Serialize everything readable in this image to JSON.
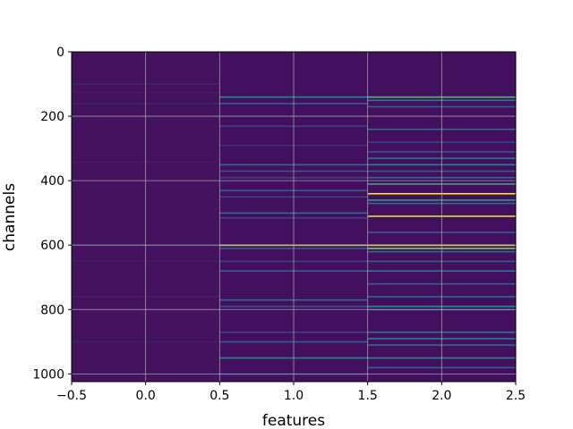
{
  "chart_data": {
    "type": "heatmap",
    "title": "",
    "xlabel": "features",
    "ylabel": "channels",
    "xlim": [
      -0.5,
      2.5
    ],
    "ylim": [
      1024,
      0
    ],
    "x_ticks": [
      -0.5,
      0.0,
      0.5,
      1.0,
      1.5,
      2.0,
      2.5
    ],
    "x_tick_labels": [
      "−0.5",
      "0.0",
      "0.5",
      "1.0",
      "1.5",
      "2.0",
      "2.5"
    ],
    "y_ticks": [
      0,
      200,
      400,
      600,
      800,
      1000
    ],
    "y_tick_labels": [
      "0",
      "200",
      "400",
      "600",
      "800",
      "1000"
    ],
    "grid": true,
    "colormap": "viridis",
    "background_color": "#3e1466",
    "columns": [
      {
        "feature": 0,
        "base_color": "#44125f",
        "highlights": [
          {
            "channel": 100,
            "value": 0.1
          },
          {
            "channel": 125,
            "value": 0.08
          },
          {
            "channel": 160,
            "value": 0.1
          },
          {
            "channel": 340,
            "value": 0.08
          },
          {
            "channel": 600,
            "value": 0.15
          },
          {
            "channel": 650,
            "value": 0.08
          },
          {
            "channel": 760,
            "value": 0.1
          },
          {
            "channel": 800,
            "value": 0.1
          },
          {
            "channel": 900,
            "value": 0.1
          },
          {
            "channel": 1000,
            "value": 0.08
          }
        ]
      },
      {
        "feature": 1,
        "base_color": "#43105f",
        "highlights": [
          {
            "channel": 140,
            "value": 0.45
          },
          {
            "channel": 160,
            "value": 0.3
          },
          {
            "channel": 230,
            "value": 0.2
          },
          {
            "channel": 290,
            "value": 0.15
          },
          {
            "channel": 350,
            "value": 0.35
          },
          {
            "channel": 370,
            "value": 0.25
          },
          {
            "channel": 390,
            "value": 0.2
          },
          {
            "channel": 430,
            "value": 0.3
          },
          {
            "channel": 450,
            "value": 0.2
          },
          {
            "channel": 500,
            "value": 0.35
          },
          {
            "channel": 515,
            "value": 0.2
          },
          {
            "channel": 600,
            "value": 0.9
          },
          {
            "channel": 610,
            "value": 0.3
          },
          {
            "channel": 650,
            "value": 0.2
          },
          {
            "channel": 680,
            "value": 0.3
          },
          {
            "channel": 770,
            "value": 0.35
          },
          {
            "channel": 790,
            "value": 0.25
          },
          {
            "channel": 870,
            "value": 0.2
          },
          {
            "channel": 900,
            "value": 0.3
          },
          {
            "channel": 950,
            "value": 0.45
          },
          {
            "channel": 1000,
            "value": 0.2
          }
        ]
      },
      {
        "feature": 2,
        "base_color": "#42105e",
        "highlights": [
          {
            "channel": 140,
            "value": 0.7
          },
          {
            "channel": 150,
            "value": 0.4
          },
          {
            "channel": 170,
            "value": 0.3
          },
          {
            "channel": 240,
            "value": 0.35
          },
          {
            "channel": 280,
            "value": 0.2
          },
          {
            "channel": 310,
            "value": 0.25
          },
          {
            "channel": 330,
            "value": 0.4
          },
          {
            "channel": 350,
            "value": 0.45
          },
          {
            "channel": 370,
            "value": 0.3
          },
          {
            "channel": 390,
            "value": 0.35
          },
          {
            "channel": 410,
            "value": 0.6
          },
          {
            "channel": 440,
            "value": 1.0
          },
          {
            "channel": 460,
            "value": 0.55
          },
          {
            "channel": 470,
            "value": 0.35
          },
          {
            "channel": 510,
            "value": 0.95
          },
          {
            "channel": 560,
            "value": 0.3
          },
          {
            "channel": 600,
            "value": 1.0
          },
          {
            "channel": 610,
            "value": 0.8
          },
          {
            "channel": 620,
            "value": 0.35
          },
          {
            "channel": 650,
            "value": 0.3
          },
          {
            "channel": 680,
            "value": 0.4
          },
          {
            "channel": 720,
            "value": 0.3
          },
          {
            "channel": 760,
            "value": 0.35
          },
          {
            "channel": 790,
            "value": 0.5
          },
          {
            "channel": 800,
            "value": 0.3
          },
          {
            "channel": 870,
            "value": 0.4
          },
          {
            "channel": 890,
            "value": 0.45
          },
          {
            "channel": 910,
            "value": 0.35
          },
          {
            "channel": 950,
            "value": 0.45
          },
          {
            "channel": 980,
            "value": 0.3
          }
        ]
      }
    ]
  }
}
